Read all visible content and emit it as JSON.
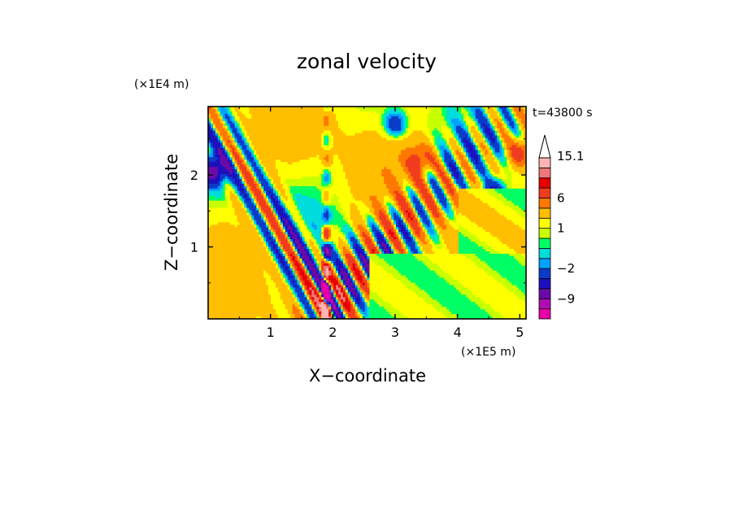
{
  "chart_data": {
    "type": "heatmap",
    "title": "zonal velocity",
    "time_label": "t=43800 s",
    "xlabel": "X−coordinate",
    "ylabel": "Z−coordinate",
    "x_scale_label": "(×1E5 m)",
    "y_scale_label": "(×1E4 m)",
    "xlim": [
      0,
      5.1
    ],
    "ylim": [
      0,
      2.95
    ],
    "x_ticks": [
      {
        "value": 1,
        "label": "1"
      },
      {
        "value": 2,
        "label": "2"
      },
      {
        "value": 3,
        "label": "3"
      },
      {
        "value": 4,
        "label": "4"
      },
      {
        "value": 5,
        "label": "5"
      }
    ],
    "y_ticks": [
      {
        "value": 1,
        "label": "1"
      },
      {
        "value": 2,
        "label": "2"
      }
    ],
    "colorbar": {
      "levels": [
        {
          "value": -15,
          "color": "#e800a6"
        },
        {
          "value": -12,
          "color": "#b00cb4"
        },
        {
          "value": -9,
          "color": "#6b0aa8"
        },
        {
          "value": -6,
          "color": "#1e0fbe"
        },
        {
          "value": -4,
          "color": "#0a3cc8"
        },
        {
          "value": -2,
          "color": "#00a0ff"
        },
        {
          "value": -1,
          "color": "#00dcdc"
        },
        {
          "value": 0,
          "color": "#00ff64"
        },
        {
          "value": 0.5,
          "color": "#c8ff00"
        },
        {
          "value": 1,
          "color": "#ffff00"
        },
        {
          "value": 2,
          "color": "#ffbe00"
        },
        {
          "value": 4,
          "color": "#ff7800"
        },
        {
          "value": 6,
          "color": "#f03c1e"
        },
        {
          "value": 9,
          "color": "#e60000"
        },
        {
          "value": 12,
          "color": "#f07878"
        },
        {
          "value": 15.1,
          "color": "#ffb4b4"
        }
      ],
      "labels": [
        {
          "value": 15.1,
          "label": "15.1"
        },
        {
          "value": 6,
          "label": "6"
        },
        {
          "value": 1,
          "label": "1"
        },
        {
          "value": -2,
          "label": "−2"
        },
        {
          "value": -9,
          "label": "−9"
        }
      ]
    },
    "grid": false,
    "legend": "colorbar-right"
  }
}
